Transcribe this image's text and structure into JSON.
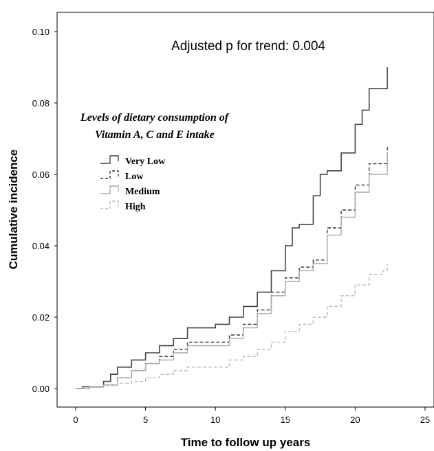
{
  "chart_data": {
    "type": "line",
    "step": true,
    "annotation": "Adjusted p for trend: 0.004",
    "xlabel": "Time to follow up years",
    "ylabel": "Cumulative incidence",
    "xlim": [
      0,
      25
    ],
    "ylim": [
      0,
      0.1
    ],
    "xticks": [
      "0",
      "5",
      "10",
      "15",
      "20",
      "25"
    ],
    "yticks": [
      "0.00",
      "0.02",
      "0.04",
      "0.06",
      "0.08",
      "0.10"
    ],
    "grid": false,
    "legend_placement": "top-left",
    "legend": {
      "title": [
        "Levels of dietary consumption of",
        "Vitamin A, C and E intake"
      ],
      "entries": [
        "Very Low",
        "Low",
        "Medium",
        "High"
      ]
    },
    "series": [
      {
        "name": "Very Low",
        "color": "#444444",
        "dash": "solid",
        "x": [
          0,
          0.5,
          2,
          2.5,
          3,
          4,
          5,
          6,
          7,
          8,
          10,
          11,
          12,
          13,
          14,
          15,
          15.5,
          16,
          17,
          17.5,
          18,
          19,
          20,
          20.5,
          21,
          22,
          22.3
        ],
        "y": [
          0,
          0.0005,
          0.002,
          0.004,
          0.006,
          0.008,
          0.01,
          0.012,
          0.014,
          0.017,
          0.018,
          0.02,
          0.023,
          0.027,
          0.033,
          0.04,
          0.045,
          0.046,
          0.054,
          0.06,
          0.061,
          0.066,
          0.074,
          0.078,
          0.084,
          0.084,
          0.09
        ]
      },
      {
        "name": "Low",
        "color": "#333333",
        "dash": "dashed",
        "x": [
          0,
          1,
          2,
          3,
          4,
          5,
          6,
          7,
          8,
          10,
          11,
          12,
          13,
          14,
          15,
          16,
          17,
          18,
          19,
          20,
          21,
          22,
          22.3
        ],
        "y": [
          0,
          0.0005,
          0.001,
          0.003,
          0.005,
          0.007,
          0.009,
          0.011,
          0.013,
          0.013,
          0.015,
          0.018,
          0.022,
          0.027,
          0.031,
          0.034,
          0.036,
          0.045,
          0.05,
          0.057,
          0.063,
          0.063,
          0.068
        ]
      },
      {
        "name": "Medium",
        "color": "#aaaaaa",
        "dash": "solid",
        "x": [
          0,
          1,
          2,
          3,
          4,
          5,
          6,
          7,
          8,
          10,
          11,
          12,
          13,
          14,
          15,
          16,
          17,
          18,
          19,
          20,
          21,
          22,
          22.3
        ],
        "y": [
          0,
          0.0005,
          0.001,
          0.003,
          0.005,
          0.007,
          0.008,
          0.01,
          0.012,
          0.012,
          0.014,
          0.017,
          0.021,
          0.026,
          0.03,
          0.033,
          0.035,
          0.043,
          0.048,
          0.055,
          0.06,
          0.06,
          0.066
        ]
      },
      {
        "name": "High",
        "color": "#bbbbbb",
        "dash": "dashed",
        "x": [
          0,
          1,
          2,
          3,
          4,
          5,
          6,
          7,
          8,
          10,
          11,
          12,
          13,
          14,
          15,
          16,
          17,
          18,
          19,
          20,
          21,
          22,
          22.3
        ],
        "y": [
          0,
          0.0003,
          0.0008,
          0.0015,
          0.002,
          0.003,
          0.004,
          0.005,
          0.006,
          0.006,
          0.008,
          0.009,
          0.011,
          0.013,
          0.016,
          0.018,
          0.02,
          0.023,
          0.026,
          0.029,
          0.032,
          0.033,
          0.035
        ]
      }
    ]
  }
}
